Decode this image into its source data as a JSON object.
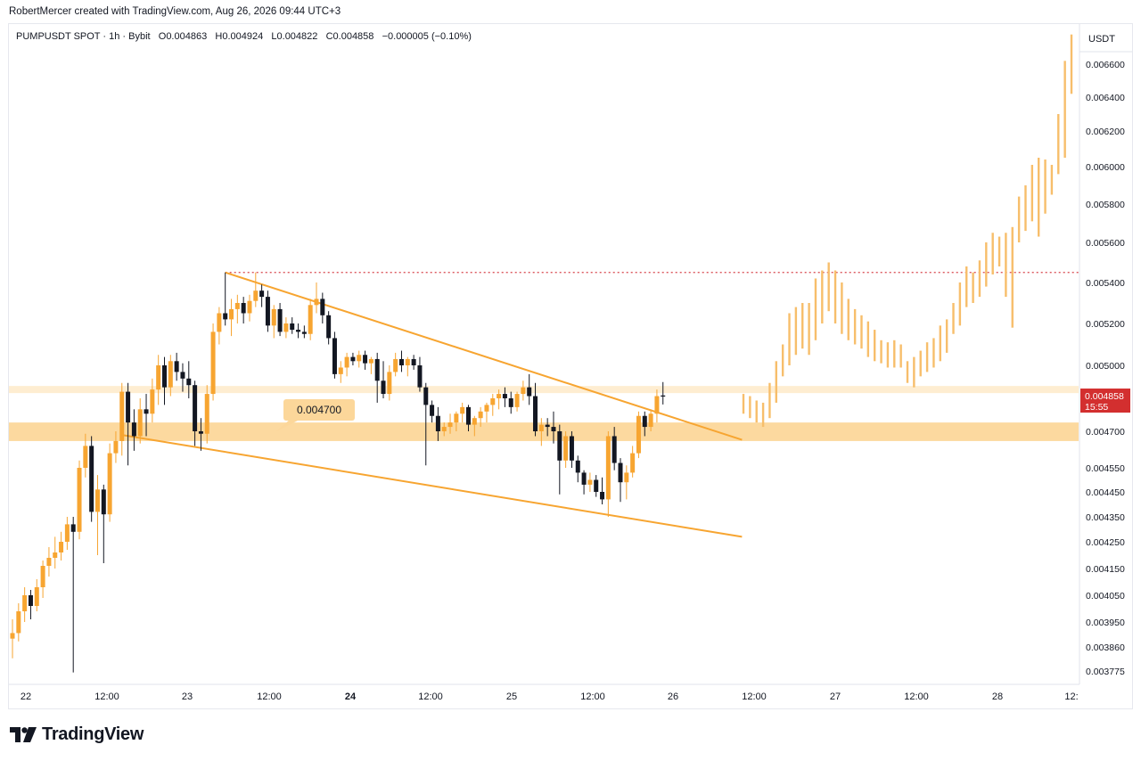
{
  "header": {
    "attribution": "RobertMercer created with TradingView.com, Aug 26, 2026 09:44 UTC+3"
  },
  "legend": {
    "symbol": "PUMPUSDT SPOT · 1h · Bybit",
    "open_label": "O",
    "open": "0.004863",
    "high_label": "H",
    "high": "0.004924",
    "low_label": "L",
    "low": "0.004822",
    "close_label": "C",
    "close": "0.004858",
    "change": "−0.000005 (−0.10%)"
  },
  "price_axis": {
    "currency": "USDT",
    "last_price": "0.004858",
    "countdown": "15:55",
    "last_price_color": "#d32f2f"
  },
  "zone_label": "0.004700",
  "footer": {
    "brand": "TradingView"
  },
  "colors": {
    "up": "#f7a531",
    "down": "#131722",
    "projection": "#f7be6b",
    "zone": "#fcd79a",
    "line": "#f7a531",
    "resistance_dotted": "#d8424a"
  },
  "chart_data": {
    "type": "candlestick",
    "symbol": "PUMPUSDT",
    "interval": "1h",
    "exchange": "Bybit",
    "y_ticks": [
      "0.006600",
      "0.006400",
      "0.006200",
      "0.006000",
      "0.005800",
      "0.005600",
      "0.005400",
      "0.005200",
      "0.005000",
      "0.004700",
      "0.004550",
      "0.004450",
      "0.004350",
      "0.004250",
      "0.004150",
      "0.004050",
      "0.003950",
      "0.003860",
      "0.003775"
    ],
    "x_ticks": [
      "22",
      "12:00",
      "23",
      "12:00",
      "24",
      "12:00",
      "25",
      "12:00",
      "26",
      "12:00",
      "27",
      "12:00",
      "28",
      "12:"
    ],
    "x_ticks_bold": [
      false,
      false,
      false,
      false,
      true,
      false,
      false,
      false,
      false,
      false,
      false,
      false,
      false,
      false
    ],
    "candles": [
      {
        "o": 0.00389,
        "h": 0.00396,
        "l": 0.00382,
        "c": 0.00391
      },
      {
        "o": 0.00391,
        "h": 0.00402,
        "l": 0.00388,
        "c": 0.00399
      },
      {
        "o": 0.00399,
        "h": 0.00408,
        "l": 0.00395,
        "c": 0.00405
      },
      {
        "o": 0.00405,
        "h": 0.00407,
        "l": 0.00396,
        "c": 0.00401
      },
      {
        "o": 0.00401,
        "h": 0.00411,
        "l": 0.00399,
        "c": 0.00408
      },
      {
        "o": 0.00408,
        "h": 0.00418,
        "l": 0.00404,
        "c": 0.00416
      },
      {
        "o": 0.00416,
        "h": 0.00423,
        "l": 0.00412,
        "c": 0.00419
      },
      {
        "o": 0.00419,
        "h": 0.00427,
        "l": 0.00415,
        "c": 0.00421
      },
      {
        "o": 0.00421,
        "h": 0.00429,
        "l": 0.00418,
        "c": 0.00425
      },
      {
        "o": 0.00425,
        "h": 0.00435,
        "l": 0.00422,
        "c": 0.00432
      },
      {
        "o": 0.00432,
        "h": 0.00435,
        "l": 0.00377,
        "c": 0.00429
      },
      {
        "o": 0.00429,
        "h": 0.00458,
        "l": 0.00426,
        "c": 0.00455
      },
      {
        "o": 0.00455,
        "h": 0.00469,
        "l": 0.00451,
        "c": 0.00464
      },
      {
        "o": 0.00464,
        "h": 0.00468,
        "l": 0.00433,
        "c": 0.00437
      },
      {
        "o": 0.00437,
        "h": 0.00452,
        "l": 0.0042,
        "c": 0.00446
      },
      {
        "o": 0.00446,
        "h": 0.00448,
        "l": 0.00417,
        "c": 0.00436
      },
      {
        "o": 0.00436,
        "h": 0.00465,
        "l": 0.00433,
        "c": 0.00461
      },
      {
        "o": 0.00461,
        "h": 0.0047,
        "l": 0.00457,
        "c": 0.00466
      },
      {
        "o": 0.00466,
        "h": 0.00492,
        "l": 0.0046,
        "c": 0.00488
      },
      {
        "o": 0.00488,
        "h": 0.00492,
        "l": 0.00456,
        "c": 0.00474
      },
      {
        "o": 0.00474,
        "h": 0.0048,
        "l": 0.00462,
        "c": 0.00468
      },
      {
        "o": 0.00468,
        "h": 0.00485,
        "l": 0.00465,
        "c": 0.0048
      },
      {
        "o": 0.0048,
        "h": 0.00487,
        "l": 0.00468,
        "c": 0.00478
      },
      {
        "o": 0.00478,
        "h": 0.00494,
        "l": 0.00474,
        "c": 0.00489
      },
      {
        "o": 0.00489,
        "h": 0.00505,
        "l": 0.00482,
        "c": 0.005
      },
      {
        "o": 0.005,
        "h": 0.00504,
        "l": 0.00482,
        "c": 0.0049
      },
      {
        "o": 0.0049,
        "h": 0.00505,
        "l": 0.00486,
        "c": 0.00502
      },
      {
        "o": 0.00502,
        "h": 0.00506,
        "l": 0.00493,
        "c": 0.00497
      },
      {
        "o": 0.00497,
        "h": 0.00501,
        "l": 0.00488,
        "c": 0.00494
      },
      {
        "o": 0.00494,
        "h": 0.00502,
        "l": 0.00485,
        "c": 0.00491
      },
      {
        "o": 0.00491,
        "h": 0.00493,
        "l": 0.00464,
        "c": 0.0047
      },
      {
        "o": 0.0047,
        "h": 0.00476,
        "l": 0.00462,
        "c": 0.00469
      },
      {
        "o": 0.00469,
        "h": 0.00491,
        "l": 0.00465,
        "c": 0.00487
      },
      {
        "o": 0.00487,
        "h": 0.0052,
        "l": 0.00484,
        "c": 0.00516
      },
      {
        "o": 0.00516,
        "h": 0.00528,
        "l": 0.0051,
        "c": 0.00525
      },
      {
        "o": 0.00525,
        "h": 0.00545,
        "l": 0.00519,
        "c": 0.00522
      },
      {
        "o": 0.00522,
        "h": 0.00532,
        "l": 0.00514,
        "c": 0.00527
      },
      {
        "o": 0.00527,
        "h": 0.00534,
        "l": 0.0052,
        "c": 0.0053
      },
      {
        "o": 0.0053,
        "h": 0.00533,
        "l": 0.0052,
        "c": 0.00525
      },
      {
        "o": 0.00525,
        "h": 0.00534,
        "l": 0.00521,
        "c": 0.00531
      },
      {
        "o": 0.00531,
        "h": 0.00545,
        "l": 0.00528,
        "c": 0.00536
      },
      {
        "o": 0.00536,
        "h": 0.00539,
        "l": 0.00528,
        "c": 0.00533
      },
      {
        "o": 0.00533,
        "h": 0.00536,
        "l": 0.00516,
        "c": 0.00519
      },
      {
        "o": 0.00519,
        "h": 0.00529,
        "l": 0.00513,
        "c": 0.00527
      },
      {
        "o": 0.00527,
        "h": 0.0053,
        "l": 0.00514,
        "c": 0.00516
      },
      {
        "o": 0.00516,
        "h": 0.00523,
        "l": 0.00513,
        "c": 0.0052
      },
      {
        "o": 0.0052,
        "h": 0.00523,
        "l": 0.00515,
        "c": 0.00517
      },
      {
        "o": 0.00517,
        "h": 0.0052,
        "l": 0.00513,
        "c": 0.00516
      },
      {
        "o": 0.00516,
        "h": 0.00519,
        "l": 0.00513,
        "c": 0.00515
      },
      {
        "o": 0.00515,
        "h": 0.00532,
        "l": 0.00512,
        "c": 0.00529
      },
      {
        "o": 0.00529,
        "h": 0.0054,
        "l": 0.00525,
        "c": 0.00532
      },
      {
        "o": 0.00532,
        "h": 0.00535,
        "l": 0.0052,
        "c": 0.00524
      },
      {
        "o": 0.00524,
        "h": 0.00526,
        "l": 0.0051,
        "c": 0.00513
      },
      {
        "o": 0.00513,
        "h": 0.00516,
        "l": 0.00494,
        "c": 0.00496
      },
      {
        "o": 0.00496,
        "h": 0.00502,
        "l": 0.00492,
        "c": 0.00499
      },
      {
        "o": 0.00499,
        "h": 0.00506,
        "l": 0.00495,
        "c": 0.00504
      },
      {
        "o": 0.00504,
        "h": 0.00506,
        "l": 0.005,
        "c": 0.00502
      },
      {
        "o": 0.00502,
        "h": 0.00507,
        "l": 0.00499,
        "c": 0.00505
      },
      {
        "o": 0.00505,
        "h": 0.00507,
        "l": 0.00498,
        "c": 0.00501
      },
      {
        "o": 0.00501,
        "h": 0.00504,
        "l": 0.00496,
        "c": 0.00503
      },
      {
        "o": 0.00503,
        "h": 0.00506,
        "l": 0.00483,
        "c": 0.00493
      },
      {
        "o": 0.00493,
        "h": 0.00502,
        "l": 0.00485,
        "c": 0.00487
      },
      {
        "o": 0.00487,
        "h": 0.005,
        "l": 0.00484,
        "c": 0.00497
      },
      {
        "o": 0.00497,
        "h": 0.00506,
        "l": 0.00495,
        "c": 0.00503
      },
      {
        "o": 0.00503,
        "h": 0.00507,
        "l": 0.00497,
        "c": 0.005
      },
      {
        "o": 0.005,
        "h": 0.00504,
        "l": 0.00495,
        "c": 0.00503
      },
      {
        "o": 0.00503,
        "h": 0.00505,
        "l": 0.00498,
        "c": 0.005
      },
      {
        "o": 0.005,
        "h": 0.00504,
        "l": 0.00488,
        "c": 0.0049
      },
      {
        "o": 0.0049,
        "h": 0.00492,
        "l": 0.00456,
        "c": 0.00482
      },
      {
        "o": 0.00482,
        "h": 0.00484,
        "l": 0.00474,
        "c": 0.00477
      },
      {
        "o": 0.00477,
        "h": 0.00481,
        "l": 0.00466,
        "c": 0.0047
      },
      {
        "o": 0.0047,
        "h": 0.00474,
        "l": 0.00468,
        "c": 0.00472
      },
      {
        "o": 0.00472,
        "h": 0.00478,
        "l": 0.00469,
        "c": 0.00474
      },
      {
        "o": 0.00474,
        "h": 0.00479,
        "l": 0.0047,
        "c": 0.00478
      },
      {
        "o": 0.00478,
        "h": 0.00483,
        "l": 0.00474,
        "c": 0.00481
      },
      {
        "o": 0.00481,
        "h": 0.00482,
        "l": 0.0047,
        "c": 0.00473
      },
      {
        "o": 0.00473,
        "h": 0.00477,
        "l": 0.00468,
        "c": 0.00476
      },
      {
        "o": 0.00476,
        "h": 0.00481,
        "l": 0.00472,
        "c": 0.00479
      },
      {
        "o": 0.00479,
        "h": 0.00483,
        "l": 0.00474,
        "c": 0.00482
      },
      {
        "o": 0.00482,
        "h": 0.00487,
        "l": 0.00477,
        "c": 0.00485
      },
      {
        "o": 0.00485,
        "h": 0.00489,
        "l": 0.0048,
        "c": 0.00487
      },
      {
        "o": 0.00487,
        "h": 0.0049,
        "l": 0.00481,
        "c": 0.00485
      },
      {
        "o": 0.00485,
        "h": 0.00488,
        "l": 0.00478,
        "c": 0.00481
      },
      {
        "o": 0.00481,
        "h": 0.00488,
        "l": 0.00479,
        "c": 0.00487
      },
      {
        "o": 0.00487,
        "h": 0.00493,
        "l": 0.00484,
        "c": 0.0049
      },
      {
        "o": 0.0049,
        "h": 0.00496,
        "l": 0.00482,
        "c": 0.00486
      },
      {
        "o": 0.00486,
        "h": 0.00492,
        "l": 0.00468,
        "c": 0.0047
      },
      {
        "o": 0.0047,
        "h": 0.00476,
        "l": 0.00464,
        "c": 0.00473
      },
      {
        "o": 0.00473,
        "h": 0.00476,
        "l": 0.00468,
        "c": 0.00472
      },
      {
        "o": 0.00472,
        "h": 0.00479,
        "l": 0.00465,
        "c": 0.0047
      },
      {
        "o": 0.0047,
        "h": 0.00473,
        "l": 0.00444,
        "c": 0.00458
      },
      {
        "o": 0.00458,
        "h": 0.0047,
        "l": 0.00455,
        "c": 0.00468
      },
      {
        "o": 0.00468,
        "h": 0.0047,
        "l": 0.00455,
        "c": 0.00458
      },
      {
        "o": 0.00458,
        "h": 0.0046,
        "l": 0.00449,
        "c": 0.00453
      },
      {
        "o": 0.00453,
        "h": 0.00454,
        "l": 0.00444,
        "c": 0.00448
      },
      {
        "o": 0.00448,
        "h": 0.00453,
        "l": 0.00445,
        "c": 0.0045
      },
      {
        "o": 0.0045,
        "h": 0.00452,
        "l": 0.00443,
        "c": 0.00445
      },
      {
        "o": 0.00445,
        "h": 0.00451,
        "l": 0.0044,
        "c": 0.00442
      },
      {
        "o": 0.00442,
        "h": 0.0047,
        "l": 0.00435,
        "c": 0.00468
      },
      {
        "o": 0.00468,
        "h": 0.00472,
        "l": 0.00454,
        "c": 0.00457
      },
      {
        "o": 0.00457,
        "h": 0.00459,
        "l": 0.00441,
        "c": 0.00449
      },
      {
        "o": 0.00449,
        "h": 0.00456,
        "l": 0.00442,
        "c": 0.00453
      },
      {
        "o": 0.00453,
        "h": 0.00464,
        "l": 0.00451,
        "c": 0.00461
      },
      {
        "o": 0.00461,
        "h": 0.00479,
        "l": 0.00459,
        "c": 0.00477
      },
      {
        "o": 0.00477,
        "h": 0.00479,
        "l": 0.00468,
        "c": 0.00472
      },
      {
        "o": 0.00472,
        "h": 0.0048,
        "l": 0.0047,
        "c": 0.00478
      },
      {
        "o": 0.00478,
        "h": 0.00489,
        "l": 0.00474,
        "c": 0.00486
      },
      {
        "o": 0.004863,
        "h": 0.004924,
        "l": 0.004822,
        "c": 0.004858
      }
    ],
    "projection_bars": [
      {
        "low": 0.00478,
        "high": 0.00487
      },
      {
        "low": 0.00476,
        "high": 0.00486
      },
      {
        "low": 0.00474,
        "high": 0.00484
      },
      {
        "low": 0.00472,
        "high": 0.00483
      },
      {
        "low": 0.00476,
        "high": 0.00492
      },
      {
        "low": 0.00483,
        "high": 0.00502
      },
      {
        "low": 0.00495,
        "high": 0.0051
      },
      {
        "low": 0.005,
        "high": 0.00525
      },
      {
        "low": 0.00505,
        "high": 0.00528
      },
      {
        "low": 0.00508,
        "high": 0.0053
      },
      {
        "low": 0.00505,
        "high": 0.0053
      },
      {
        "low": 0.00512,
        "high": 0.00542
      },
      {
        "low": 0.0052,
        "high": 0.00546
      },
      {
        "low": 0.00526,
        "high": 0.0055
      },
      {
        "low": 0.0052,
        "high": 0.00546
      },
      {
        "low": 0.00515,
        "high": 0.0054
      },
      {
        "low": 0.00512,
        "high": 0.00532
      },
      {
        "low": 0.0051,
        "high": 0.00527
      },
      {
        "low": 0.00508,
        "high": 0.00524
      },
      {
        "low": 0.00504,
        "high": 0.00521
      },
      {
        "low": 0.00502,
        "high": 0.00517
      },
      {
        "low": 0.00501,
        "high": 0.00512
      },
      {
        "low": 0.00499,
        "high": 0.00511
      },
      {
        "low": 0.00499,
        "high": 0.00512
      },
      {
        "low": 0.00499,
        "high": 0.0051
      },
      {
        "low": 0.00492,
        "high": 0.00502
      },
      {
        "low": 0.0049,
        "high": 0.00504
      },
      {
        "low": 0.00495,
        "high": 0.00507
      },
      {
        "low": 0.00497,
        "high": 0.00511
      },
      {
        "low": 0.00499,
        "high": 0.00513
      },
      {
        "low": 0.00502,
        "high": 0.00519
      },
      {
        "low": 0.00506,
        "high": 0.00522
      },
      {
        "low": 0.00515,
        "high": 0.0053
      },
      {
        "low": 0.00519,
        "high": 0.0054
      },
      {
        "low": 0.00528,
        "high": 0.00548
      },
      {
        "low": 0.0053,
        "high": 0.00545
      },
      {
        "low": 0.00533,
        "high": 0.00551
      },
      {
        "low": 0.00538,
        "high": 0.0056
      },
      {
        "low": 0.00544,
        "high": 0.00565
      },
      {
        "low": 0.00548,
        "high": 0.00563
      },
      {
        "low": 0.00533,
        "high": 0.00565
      },
      {
        "low": 0.00518,
        "high": 0.00568
      },
      {
        "low": 0.0056,
        "high": 0.00584
      },
      {
        "low": 0.00566,
        "high": 0.0059
      },
      {
        "low": 0.00571,
        "high": 0.00601
      },
      {
        "low": 0.00563,
        "high": 0.00605
      },
      {
        "low": 0.00575,
        "high": 0.00604
      },
      {
        "low": 0.00585,
        "high": 0.00601
      },
      {
        "low": 0.00596,
        "high": 0.0063
      },
      {
        "low": 0.00605,
        "high": 0.00662
      },
      {
        "low": 0.00642,
        "high": 0.00678
      }
    ],
    "ylim": [
      0.00372,
      0.00676
    ],
    "support_zone": [
      0.00466,
      0.00474
    ],
    "highlight_line": 0.00489,
    "resistance_level": 0.00545,
    "wedge_upper": {
      "from_index": 35,
      "from": 0.00545,
      "to_index": 120,
      "to": 0.004665
    },
    "wedge_lower": {
      "from_index": 18,
      "from": 0.004685,
      "to_index": 120,
      "to": 0.00427
    }
  }
}
